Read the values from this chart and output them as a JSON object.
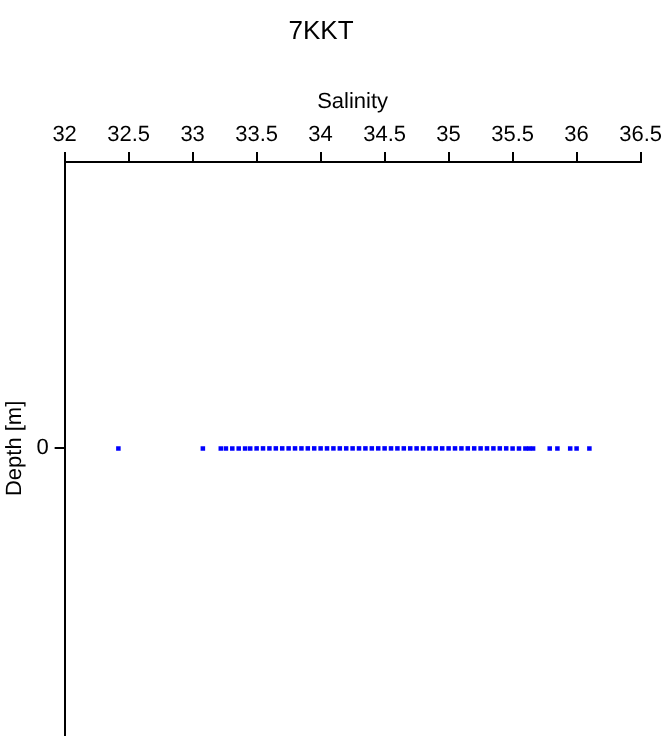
{
  "chart_data": {
    "type": "scatter",
    "title": "7KKT",
    "xlabel": "Salinity",
    "ylabel": "Depth [m]",
    "orientation": "horizontal",
    "categories": [
      "0"
    ],
    "xlim": [
      32,
      36.5
    ],
    "xticks": [
      32,
      32.5,
      33,
      33.5,
      34,
      34.5,
      35,
      35.5,
      36,
      36.5
    ],
    "grid": false,
    "legend": false,
    "marker": "square",
    "series": [
      {
        "color": "#0000ff",
        "x": [
          "0",
          "0",
          "0",
          "0",
          "0",
          "0",
          "0",
          "0",
          "0",
          "0",
          "0",
          "0",
          "0",
          "0",
          "0",
          "0",
          "0",
          "0",
          "0",
          "0",
          "0",
          "0",
          "0",
          "0",
          "0",
          "0",
          "0",
          "0",
          "0",
          "0",
          "0",
          "0",
          "0",
          "0",
          "0",
          "0",
          "0",
          "0",
          "0",
          "0",
          "0",
          "0",
          "0",
          "0",
          "0",
          "0",
          "0",
          "0",
          "0",
          "0",
          "0",
          "0",
          "0",
          "0",
          "0",
          "0",
          "0",
          "0"
        ],
        "values": [
          32.42,
          33.08,
          33.22,
          33.26,
          33.31,
          33.36,
          33.41,
          33.45,
          33.5,
          33.55,
          33.6,
          33.65,
          33.7,
          33.75,
          33.8,
          33.85,
          33.9,
          33.95,
          34,
          34.05,
          34.1,
          34.15,
          34.2,
          34.25,
          34.3,
          34.35,
          34.4,
          34.45,
          34.5,
          34.55,
          34.6,
          34.65,
          34.7,
          34.75,
          34.8,
          34.85,
          34.9,
          34.95,
          35,
          35.05,
          35.1,
          35.15,
          35.2,
          35.25,
          35.3,
          35.35,
          35.4,
          35.45,
          35.5,
          35.55,
          35.6,
          35.63,
          35.66,
          35.79,
          35.85,
          35.95,
          36,
          36.1
        ]
      }
    ]
  }
}
